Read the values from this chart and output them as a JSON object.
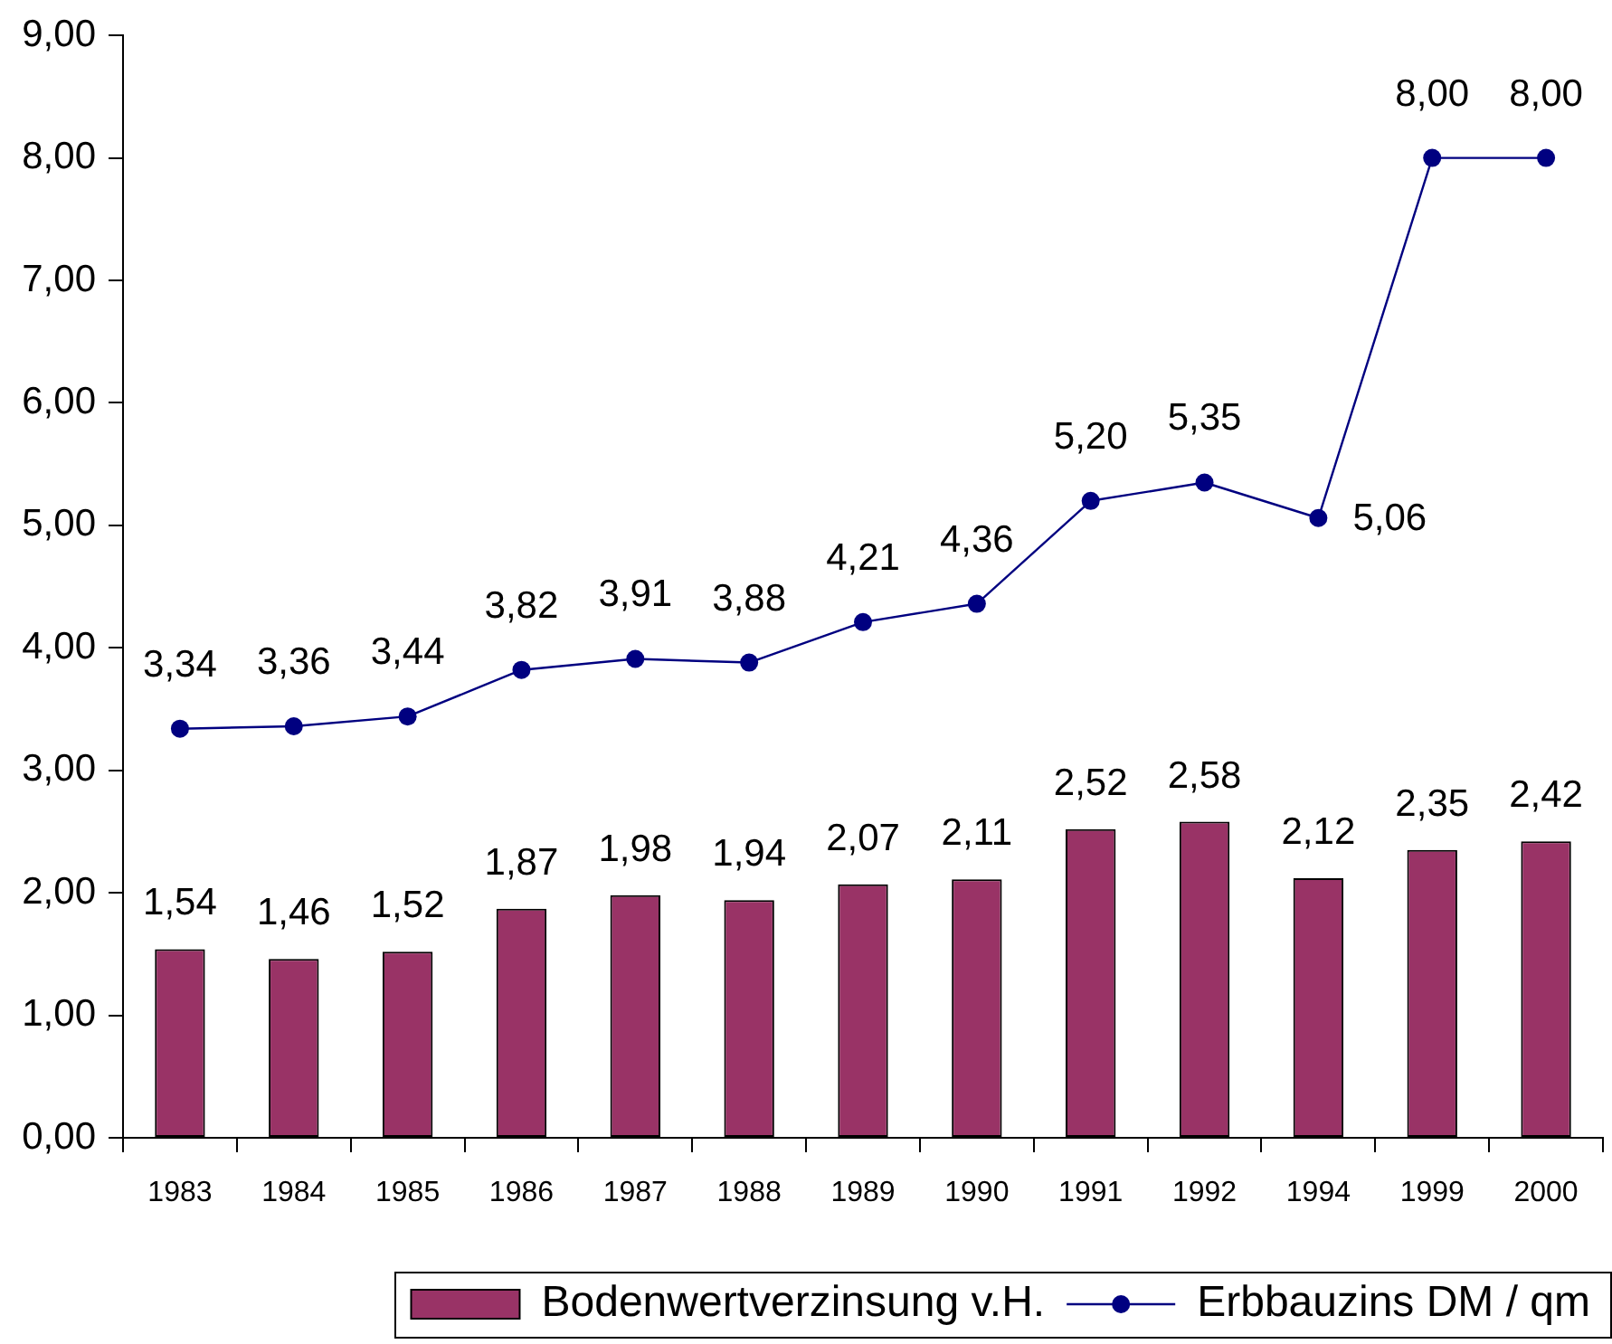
{
  "chart_data": {
    "type": "bar",
    "categories": [
      "1983",
      "1984",
      "1985",
      "1986",
      "1987",
      "1988",
      "1989",
      "1990",
      "1991",
      "1992",
      "1994",
      "1999",
      "2000"
    ],
    "series": [
      {
        "name": "Bodenwertverzinsung v.H.",
        "color": "#993366",
        "values": [
          1.54,
          1.46,
          1.52,
          1.87,
          1.98,
          1.94,
          2.07,
          2.11,
          2.52,
          2.58,
          2.12,
          2.35,
          2.42
        ],
        "value_labels": [
          "1,54",
          "1,46",
          "1,52",
          "1,87",
          "1,98",
          "1,94",
          "2,07",
          "2,11",
          "2,52",
          "2,58",
          "2,12",
          "2,35",
          "2,42"
        ]
      },
      {
        "name": "Erbbauzins DM / qm",
        "type": "line",
        "color": "#000080",
        "values": [
          3.34,
          3.36,
          3.44,
          3.82,
          3.91,
          3.88,
          4.21,
          4.36,
          5.2,
          5.35,
          5.06,
          8.0,
          8.0
        ],
        "value_labels": [
          "3,34",
          "3,36",
          "3,44",
          "3,82",
          "3,91",
          "3,88",
          "4,21",
          "4,36",
          "5,20",
          "5,35",
          "5,06",
          "8,00",
          "8,00"
        ]
      }
    ],
    "ylim": [
      0,
      9
    ],
    "yticks": [
      {
        "value": 0,
        "label": "0,00"
      },
      {
        "value": 1,
        "label": "1,00"
      },
      {
        "value": 2,
        "label": "2,00"
      },
      {
        "value": 3,
        "label": "3,00"
      },
      {
        "value": 4,
        "label": "4,00"
      },
      {
        "value": 5,
        "label": "5,00"
      },
      {
        "value": 6,
        "label": "6,00"
      },
      {
        "value": 7,
        "label": "7,00"
      },
      {
        "value": 8,
        "label": "8,00"
      },
      {
        "value": 9,
        "label": "9,00"
      }
    ],
    "grid": false,
    "legend": "bottom right",
    "marker": "circle",
    "line_style": "solid"
  }
}
